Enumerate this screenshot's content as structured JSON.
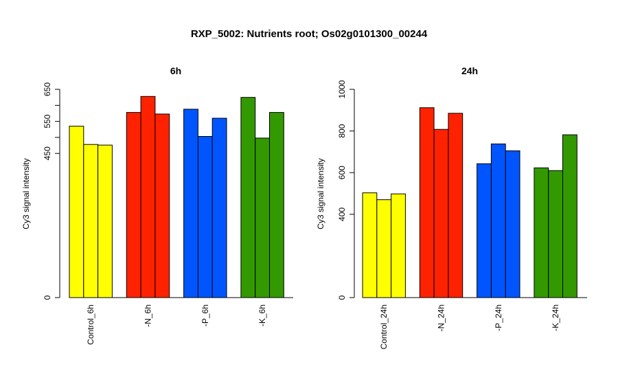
{
  "page_title": "RXP_5002: Nutrients root; Os02g0101300_00244",
  "colors": {
    "control": "#ffff00",
    "N": "#ff2200",
    "P": "#0055ff",
    "K": "#339900",
    "bar_edge": "#000000"
  },
  "chart_data": [
    {
      "type": "bar",
      "title": "6h",
      "ylabel": "Cy3 signal intensity",
      "xlabel": "",
      "ylim": [
        0,
        650
      ],
      "yticks": [
        0,
        450,
        550,
        650
      ],
      "grid": false,
      "legend": "none",
      "categories": [
        "Control_6h",
        "-N_6h",
        "-P_6h",
        "-K_6h"
      ],
      "group_colors": [
        "#ffff00",
        "#ff2200",
        "#0055ff",
        "#339900"
      ],
      "values": [
        [
          535,
          478,
          476
        ],
        [
          578,
          628,
          573
        ],
        [
          588,
          503,
          560
        ],
        [
          625,
          498,
          578
        ]
      ]
    },
    {
      "type": "bar",
      "title": "24h",
      "ylabel": "Cy3 signal intensity",
      "xlabel": "",
      "ylim": [
        0,
        1000
      ],
      "yticks": [
        0,
        400,
        600,
        800,
        1000
      ],
      "grid": false,
      "legend": "none",
      "categories": [
        "Control_24h",
        "-N_24h",
        "-P_24h",
        "-K_24h"
      ],
      "group_colors": [
        "#ffff00",
        "#ff2200",
        "#0055ff",
        "#339900"
      ],
      "values": [
        [
          503,
          470,
          498
        ],
        [
          912,
          808,
          885
        ],
        [
          643,
          738,
          705
        ],
        [
          623,
          610,
          782
        ]
      ]
    }
  ]
}
